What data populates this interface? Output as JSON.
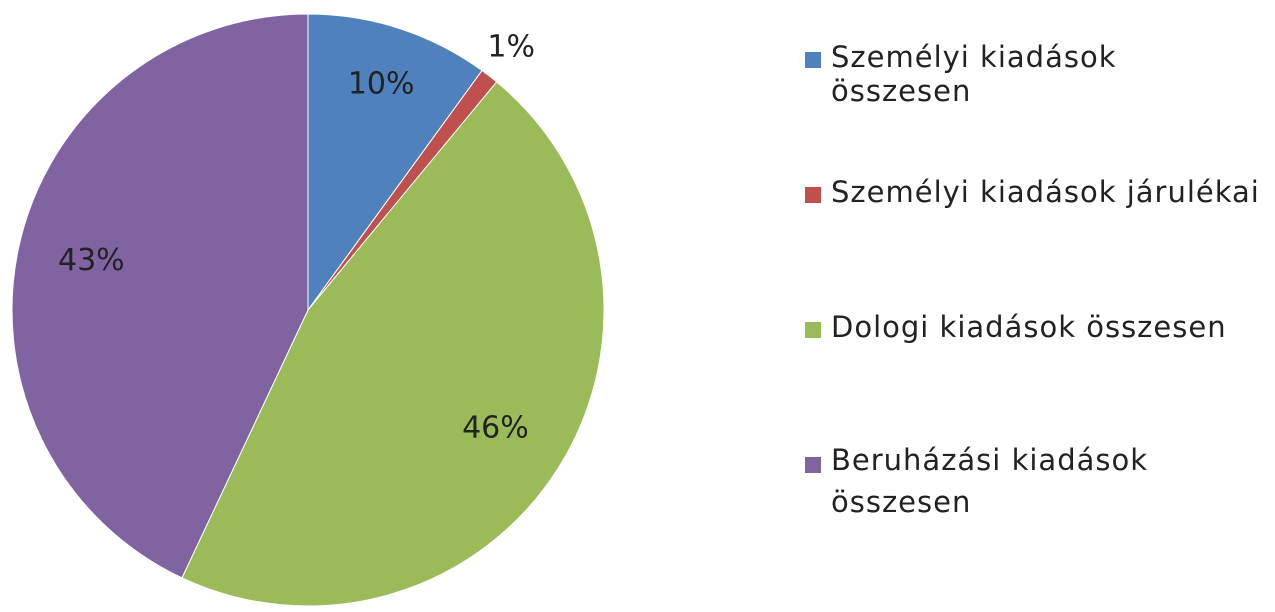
{
  "chart_data": {
    "type": "pie",
    "categories": [
      "Személyi kiadások összesen",
      "Személyi kiadások járulékai",
      "Dologi kiadások összesen",
      "Beruházási kiadások összesen"
    ],
    "values": [
      10,
      1,
      46,
      43
    ],
    "value_labels": [
      "10%",
      "1%",
      "46%",
      "43%"
    ],
    "colors": [
      "#4f81bd",
      "#c0504d",
      "#9bbb59",
      "#8064a2"
    ],
    "legend": "right"
  }
}
